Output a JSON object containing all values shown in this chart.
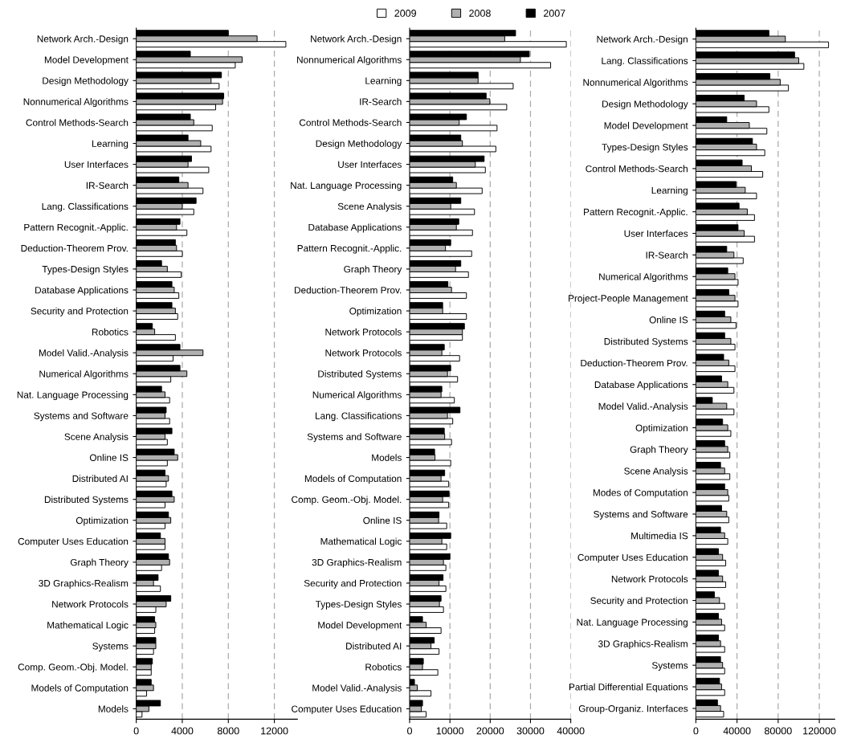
{
  "chart_data": [
    {
      "type": "bar",
      "orientation": "horizontal",
      "legend": "top",
      "grid": "x",
      "categories": [
        "Network Arch.-Design",
        "Model Development",
        "Design Methodology",
        "Nonnumerical Algorithms",
        "Control Methods-Search",
        "Learning",
        "User Interfaces",
        "IR-Search",
        "Lang. Classifications",
        "Pattern Recognit.-Applic.",
        "Deduction-Theorem Prov.",
        "Types-Design Styles",
        "Database Applications",
        "Security and Protection",
        "Robotics",
        "Model Valid.-Analysis",
        "Numerical Algorithms",
        "Nat. Language Processing",
        "Systems and Software",
        "Scene Analysis",
        "Online IS",
        "Distributed AI",
        "Distributed Systems",
        "Optimization",
        "Computer Uses Education",
        "Graph Theory",
        "3D Graphics-Realism",
        "Network Protocols",
        "Mathematical Logic",
        "Systems",
        "Comp. Geom.-Obj. Model.",
        "Models of Computation",
        "Models"
      ],
      "series": [
        {
          "name": "2009",
          "color": "#ffffff",
          "values": [
            13000,
            8600,
            7200,
            6900,
            6600,
            6500,
            6300,
            5800,
            5000,
            4400,
            4000,
            3900,
            3700,
            3600,
            3400,
            3200,
            3000,
            2900,
            2900,
            2700,
            2700,
            2600,
            2500,
            2500,
            2500,
            2200,
            2100,
            1700,
            1600,
            1500,
            1300,
            900,
            500
          ]
        },
        {
          "name": "2008",
          "color": "#b0b0b0",
          "values": [
            10500,
            9200,
            6500,
            7500,
            5000,
            5600,
            4500,
            4500,
            4000,
            3500,
            3500,
            2700,
            3300,
            3400,
            1600,
            5800,
            4400,
            2500,
            2500,
            2500,
            3600,
            2800,
            3300,
            3000,
            2500,
            2900,
            1500,
            2600,
            1700,
            1700,
            1300,
            1500,
            1100
          ]
        },
        {
          "name": "2007",
          "color": "#000000",
          "values": [
            8000,
            4700,
            7400,
            7600,
            4700,
            4500,
            4800,
            3700,
            5200,
            3800,
            3400,
            2200,
            3100,
            3100,
            1400,
            3800,
            3800,
            2200,
            2600,
            3100,
            3300,
            2500,
            3100,
            2800,
            2100,
            2800,
            1900,
            3000,
            1600,
            1700,
            1400,
            1300,
            2100
          ]
        }
      ],
      "xlim": [
        0,
        14000
      ],
      "xticks": [
        0,
        4000,
        8000,
        12000
      ]
    },
    {
      "type": "bar",
      "orientation": "horizontal",
      "grid": "x",
      "categories": [
        "Network Arch.-Design",
        "Nonnumerical Algorithms",
        "Learning",
        "IR-Search",
        "Control Methods-Search",
        "Design Methodology",
        "User Interfaces",
        "Nat. Language Processing",
        "Scene Analysis",
        "Database Applications",
        "Pattern Recognit.-Applic.",
        "Graph Theory",
        "Deduction-Theorem Prov.",
        "Optimization",
        "Network Protocols",
        "Network Protocols",
        "Distributed Systems",
        "Numerical Algorithms",
        "Lang. Classifications",
        "Systems and Software",
        "Models",
        "Models of Computation",
        "Comp. Geom.-Obj. Model.",
        "Online IS",
        "Mathematical Logic",
        "3D Graphics-Realism",
        "Security and Protection",
        "Types-Design Styles",
        "Model Development",
        "Distributed AI",
        "Robotics",
        "Model Valid.-Analysis",
        "Computer Uses Education"
      ],
      "series": [
        {
          "name": "2009",
          "color": "#ffffff",
          "values": [
            38900,
            35000,
            25700,
            24100,
            21700,
            21400,
            18800,
            18000,
            16100,
            15600,
            15400,
            14600,
            14100,
            14100,
            13100,
            12400,
            11900,
            11100,
            10700,
            10400,
            10200,
            9700,
            9700,
            9200,
            9200,
            9000,
            9000,
            8400,
            7800,
            7300,
            7000,
            5300,
            4100
          ]
        },
        {
          "name": "2008",
          "color": "#b0b0b0",
          "values": [
            23600,
            27500,
            17000,
            19900,
            12300,
            13100,
            16300,
            11600,
            10200,
            11600,
            8900,
            11400,
            10400,
            8200,
            13100,
            8000,
            9400,
            7800,
            9400,
            8700,
            6300,
            7800,
            8200,
            7200,
            8000,
            8400,
            7300,
            7400,
            4100,
            5300,
            3200,
            1900,
            2900
          ]
        },
        {
          "name": "2007",
          "color": "#000000",
          "values": [
            26300,
            29700,
            17000,
            19000,
            14100,
            12700,
            18500,
            10700,
            12700,
            12200,
            10200,
            12700,
            9500,
            8200,
            13600,
            8600,
            10200,
            8000,
            12500,
            8600,
            6200,
            8700,
            9800,
            7300,
            10200,
            10000,
            8300,
            7800,
            3200,
            6100,
            3400,
            1200,
            3200
          ]
        }
      ],
      "xlim": [
        0,
        40000
      ],
      "xticks": [
        0,
        10000,
        20000,
        30000,
        40000
      ]
    },
    {
      "type": "bar",
      "orientation": "horizontal",
      "grid": "x",
      "categories": [
        "Network Arch.-Design",
        "Lang. Classifications",
        "Nonnumerical Algorithms",
        "Design Methodology",
        "Model Development",
        "Types-Design Styles",
        "Control Methods-Search",
        "Learning",
        "Pattern Recognit.-Applic.",
        "User Interfaces",
        "IR-Search",
        "Numerical Algorithms",
        "Project-People Management",
        "Online IS",
        "Distributed Systems",
        "Deduction-Theorem Prov.",
        "Database Applications",
        "Model Valid.-Analysis",
        "Optimization",
        "Graph Theory",
        "Scene Analysis",
        "Modes of Computation",
        "Systems and Software",
        "Multimedia IS",
        "Computer Uses Education",
        "Network Protocols",
        "Security and Protection",
        "Nat. Language Processing",
        "3D Graphics-Realism",
        "Systems",
        "Partial Differential Equations",
        "Group-Organiz. Interfaces"
      ],
      "series": [
        {
          "name": "2009",
          "color": "#ffffff",
          "values": [
            129000,
            105000,
            90000,
            71000,
            69000,
            67000,
            65000,
            59000,
            57000,
            57000,
            46000,
            41000,
            41000,
            39000,
            38000,
            38000,
            37000,
            37000,
            34000,
            33000,
            33000,
            32000,
            32000,
            31000,
            29000,
            29000,
            28000,
            28000,
            28000,
            28000,
            28000,
            27000
          ]
        },
        {
          "name": "2008",
          "color": "#b0b0b0",
          "values": [
            87000,
            100000,
            82000,
            59000,
            52000,
            59000,
            54000,
            48000,
            50000,
            47000,
            37000,
            38000,
            38000,
            34000,
            34000,
            32000,
            31000,
            30000,
            31000,
            31000,
            28000,
            31000,
            30000,
            28000,
            26000,
            26000,
            23000,
            25000,
            24000,
            26000,
            25000,
            24000
          ]
        },
        {
          "name": "2007",
          "color": "#000000",
          "values": [
            71000,
            96000,
            72000,
            47000,
            30000,
            55000,
            45000,
            39000,
            42000,
            41000,
            30000,
            31000,
            32000,
            28000,
            28000,
            27000,
            25000,
            16000,
            26000,
            28000,
            24000,
            28000,
            25000,
            24000,
            22000,
            22000,
            18000,
            22000,
            22000,
            24000,
            23000,
            21000
          ]
        }
      ],
      "xlim": [
        0,
        135000
      ],
      "xticks": [
        0,
        40000,
        80000,
        120000
      ]
    }
  ]
}
